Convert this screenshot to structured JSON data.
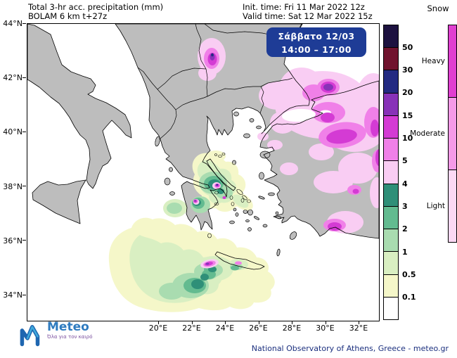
{
  "header": {
    "product": "Total 3-hr acc. precipitation (mm)",
    "model": "BOLAM 6 km t+27z",
    "init_time": "Init. time: Fri 11 Mar 2022 12z",
    "valid_time": "Valid time: Sat 12 Mar 2022 15z"
  },
  "info_box": {
    "date": "Σάββατο 12/03",
    "time_range": "14:00 – 17:00",
    "bg_color": "#1e3c96"
  },
  "axes": {
    "lat": [
      "44°N",
      "42°N",
      "40°N",
      "38°N",
      "36°N",
      "34°N"
    ],
    "lon": [
      "20°E",
      "22°E",
      "24°E",
      "26°E",
      "28°E",
      "30°E",
      "32°E"
    ]
  },
  "colorbar": {
    "ticks": [
      "50",
      "30",
      "20",
      "15",
      "10",
      "5",
      "4",
      "3",
      "2",
      "1",
      "0.5",
      "0.1"
    ],
    "colors_top_to_bottom": [
      "#1d1240",
      "#70132e",
      "#232a82",
      "#8832b8",
      "#d43bd4",
      "#f080e8",
      "#f9cdf3",
      "#2f8f78",
      "#63bb90",
      "#a9dcb0",
      "#d9efc2",
      "#f5f7c9",
      "#ffffff"
    ]
  },
  "snow_legend": {
    "title": "Snow",
    "labels": [
      "Heavy",
      "Moderate",
      "Light"
    ],
    "colors": [
      "#e03fd0",
      "#f59ae8",
      "#fbd9f4"
    ]
  },
  "map_style": {
    "land_color": "#bdbdbd",
    "sea_color": "#ffffff",
    "coast_color": "#000000"
  },
  "footer": {
    "logo_text": "Meteo",
    "logo_tagline": "Όλα για τον καιρό",
    "attribution": "National Observatory of Athens, Greece - meteo.gr"
  }
}
